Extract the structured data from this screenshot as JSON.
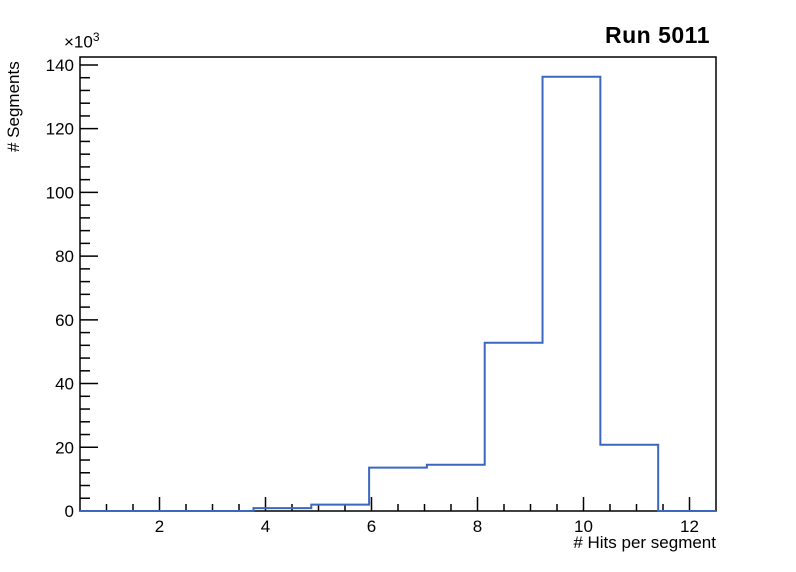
{
  "title": {
    "text": "Run 5011"
  },
  "y_axis": {
    "title": "# Segments",
    "multiplier_base": "×10",
    "multiplier_exp": "3",
    "tick_labels": [
      "0",
      "20",
      "40",
      "60",
      "80",
      "100",
      "120",
      "140"
    ]
  },
  "x_axis": {
    "title": "# Hits per segment",
    "tick_labels": [
      "2",
      "4",
      "6",
      "8",
      "10",
      "12"
    ]
  },
  "chart_data": {
    "type": "bar",
    "subtype": "step-histogram",
    "title": "Run 5011",
    "xlabel": "# Hits per segment",
    "ylabel": "# Segments",
    "y_multiplier": 1000,
    "y_multiplier_label": "×10³",
    "xlim": [
      0.5,
      12.5
    ],
    "ylim": [
      0,
      142500
    ],
    "n_bins": 11,
    "bin_edges": [
      0.5,
      1.591,
      2.682,
      3.773,
      4.864,
      5.955,
      7.045,
      8.136,
      9.227,
      10.318,
      11.409,
      12.5
    ],
    "counts": [
      0,
      0,
      0,
      900,
      2000,
      13600,
      14500,
      52800,
      136300,
      20800,
      0
    ],
    "x_major_ticks": [
      2,
      4,
      6,
      8,
      10,
      12
    ],
    "x_minor_tick_step": 0.5,
    "y_major_ticks": [
      0,
      20000,
      40000,
      60000,
      80000,
      100000,
      120000,
      140000
    ],
    "y_minor_tick_step": 4000,
    "grid": false,
    "legend": "none",
    "line_color": "#3a67c0",
    "axis_color": "#000000",
    "background_color": "#ffffff"
  }
}
